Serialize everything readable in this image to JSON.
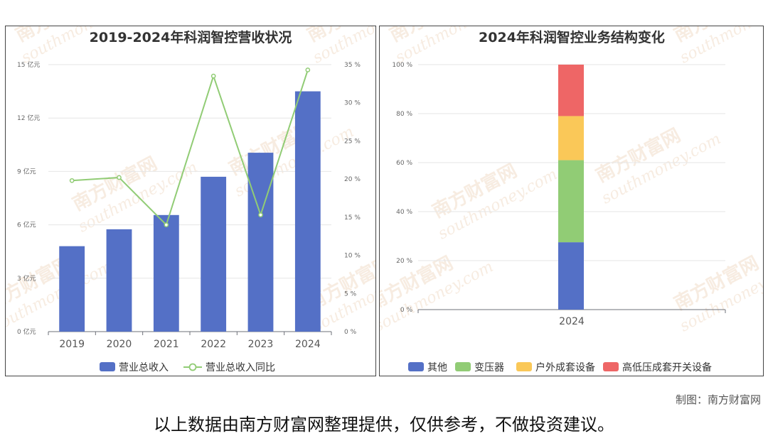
{
  "chart_data": [
    {
      "type": "bar+line",
      "title": "2019-2024年科润智控营收状况",
      "categories": [
        "2019",
        "2020",
        "2021",
        "2022",
        "2023",
        "2024"
      ],
      "series": [
        {
          "name": "营业总收入",
          "type": "bar",
          "axis": "left",
          "color": "#5470c6",
          "values": [
            4.8,
            5.75,
            6.55,
            8.7,
            10.05,
            13.5
          ]
        },
        {
          "name": "营业总收入同比",
          "type": "line",
          "axis": "right",
          "color": "#91cc75",
          "values": [
            19.8,
            20.2,
            14.0,
            33.5,
            15.3,
            34.3
          ]
        }
      ],
      "y_left": {
        "min": 0,
        "max": 15,
        "ticks": [
          0,
          3,
          6,
          9,
          12,
          15
        ],
        "tick_labels": [
          "0 亿元",
          "3 亿元",
          "6 亿元",
          "9 亿元",
          "12 亿元",
          "15 亿元"
        ]
      },
      "y_right": {
        "min": 0,
        "max": 35,
        "ticks": [
          0,
          5,
          10,
          15,
          20,
          25,
          30,
          35
        ],
        "tick_labels": [
          "0 %",
          "5 %",
          "10 %",
          "15 %",
          "20 %",
          "25 %",
          "30 %",
          "35 %"
        ]
      },
      "grid": true,
      "legend_position": "bottom-center"
    },
    {
      "type": "stacked-bar",
      "title": "2024年科润智控业务结构变化",
      "categories": [
        "2024"
      ],
      "series": [
        {
          "name": "其他",
          "color": "#5470c6",
          "values": [
            27.5
          ]
        },
        {
          "name": "变压器",
          "color": "#91cc75",
          "values": [
            33.5
          ]
        },
        {
          "name": "户外成套设备",
          "color": "#fac858",
          "values": [
            18.0
          ]
        },
        {
          "name": "高低压成套开关设备",
          "color": "#ee6666",
          "values": [
            21.0
          ]
        }
      ],
      "y": {
        "min": 0,
        "max": 100,
        "ticks": [
          0,
          20,
          40,
          60,
          80,
          100
        ],
        "tick_labels": [
          "0 %",
          "20 %",
          "40 %",
          "60 %",
          "80 %",
          "100 %"
        ]
      },
      "grid": true,
      "legend_position": "bottom-center"
    }
  ],
  "watermark": {
    "text_cn": "南方财富网",
    "text_en": "southmoney.com"
  },
  "footer": {
    "credit": "制图：南方财富网",
    "disclaimer": "以上数据由南方财富网整理提供，仅供参考，不做投资建议。"
  }
}
